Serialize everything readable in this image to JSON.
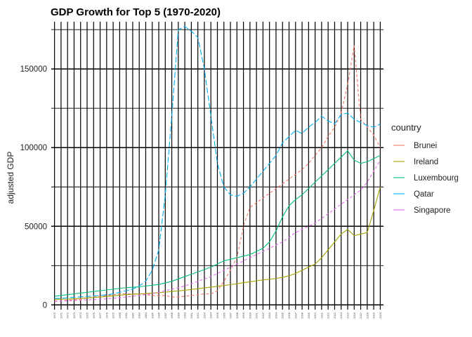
{
  "chart_data": {
    "type": "line",
    "title": "GDP Growth for Top 5 (1970-2020)",
    "xlabel": "",
    "ylabel": "adjusted GDP",
    "x_tick_labels_illegible": true,
    "x": [
      1970,
      1971,
      1972,
      1973,
      1974,
      1975,
      1976,
      1977,
      1978,
      1979,
      1980,
      1981,
      1982,
      1983,
      1984,
      1985,
      1986,
      1987,
      1988,
      1989,
      1990,
      1991,
      1992,
      1993,
      1994,
      1995,
      1996,
      1997,
      1998,
      1999,
      2000,
      2001,
      2002,
      2003,
      2004,
      2005,
      2006,
      2007,
      2008,
      2009,
      2010,
      2011,
      2012,
      2013,
      2014,
      2015,
      2016,
      2017,
      2018,
      2019,
      2020
    ],
    "ylim": [
      -3000,
      180000
    ],
    "y_ticks": [
      0,
      50000,
      100000,
      150000
    ],
    "y_tick_labels": [
      "0",
      "50000",
      "100000",
      "150000"
    ],
    "grid": true,
    "legend": {
      "title": "country",
      "position": "right"
    },
    "series": [
      {
        "name": "Brunei",
        "color": "#F8766D",
        "dash": "4,3",
        "values": [
          2500,
          2500,
          3000,
          3200,
          3500,
          4500,
          5000,
          5500,
          6000,
          6500,
          7000,
          7000,
          7000,
          7000,
          6500,
          6000,
          6000,
          6000,
          5000,
          5000,
          5500,
          6000,
          6500,
          7000,
          7000,
          9000,
          15000,
          22000,
          30000,
          50000,
          62000,
          65000,
          68000,
          71000,
          74000,
          77000,
          80000,
          83000,
          86000,
          90000,
          95000,
          100000,
          107000,
          113000,
          122000,
          140000,
          165000,
          118000,
          113000,
          108000,
          100000
        ]
      },
      {
        "name": "Ireland",
        "color": "#A3A500",
        "dash": "",
        "values": [
          3500,
          3600,
          3700,
          3900,
          4100,
          4400,
          4700,
          5000,
          5400,
          5800,
          6200,
          6500,
          6800,
          7000,
          7200,
          7500,
          7800,
          8100,
          8500,
          8900,
          9300,
          9800,
          10300,
          10800,
          11300,
          11800,
          12300,
          12900,
          13500,
          14100,
          14700,
          15300,
          15900,
          16300,
          16800,
          17500,
          18500,
          20000,
          22000,
          24000,
          26000,
          30000,
          35000,
          40000,
          45000,
          48000,
          44000,
          45000,
          46000,
          60000,
          75000
        ]
      },
      {
        "name": "Luxembourg",
        "color": "#00BF7D",
        "dash": "",
        "values": [
          5500,
          6000,
          6500,
          7000,
          7500,
          8000,
          8500,
          9000,
          9500,
          10000,
          10500,
          11000,
          11200,
          11500,
          12000,
          12500,
          13000,
          14000,
          15000,
          16500,
          18000,
          19500,
          21000,
          22500,
          24000,
          26000,
          28000,
          29000,
          30000,
          31000,
          32000,
          34000,
          36000,
          40000,
          47000,
          56000,
          63000,
          67000,
          70000,
          74000,
          78000,
          82000,
          86000,
          90000,
          94000,
          98000,
          92000,
          90000,
          91000,
          93000,
          95000
        ]
      },
      {
        "name": "Qatar",
        "color": "#00B0F6",
        "dash": "8,3",
        "values": [
          4000,
          4200,
          4500,
          4800,
          5100,
          5400,
          5700,
          6000,
          6500,
          7000,
          8000,
          9000,
          10000,
          12000,
          15000,
          22000,
          35000,
          70000,
          120000,
          175000,
          177000,
          174000,
          170000,
          150000,
          120000,
          90000,
          75000,
          70000,
          69000,
          71000,
          75000,
          80000,
          85000,
          90000,
          95000,
          103000,
          107000,
          111000,
          109000,
          113000,
          116000,
          120000,
          117000,
          115000,
          121000,
          122000,
          118000,
          116000,
          114000,
          113000,
          115000
        ]
      },
      {
        "name": "Singapore",
        "color": "#E76BF3",
        "dash": "4,3",
        "values": [
          2200,
          2400,
          2600,
          2800,
          3000,
          3200,
          3400,
          3600,
          3900,
          4200,
          4600,
          5000,
          5500,
          6000,
          6600,
          7200,
          8000,
          9000,
          10000,
          11000,
          12000,
          13500,
          15000,
          16500,
          18000,
          20000,
          22000,
          24000,
          26000,
          28000,
          30000,
          32000,
          34000,
          36000,
          38000,
          40000,
          43000,
          46000,
          48000,
          50000,
          52000,
          55000,
          58000,
          61000,
          64000,
          67000,
          70000,
          73000,
          78000,
          85000,
          92000
        ]
      }
    ]
  }
}
